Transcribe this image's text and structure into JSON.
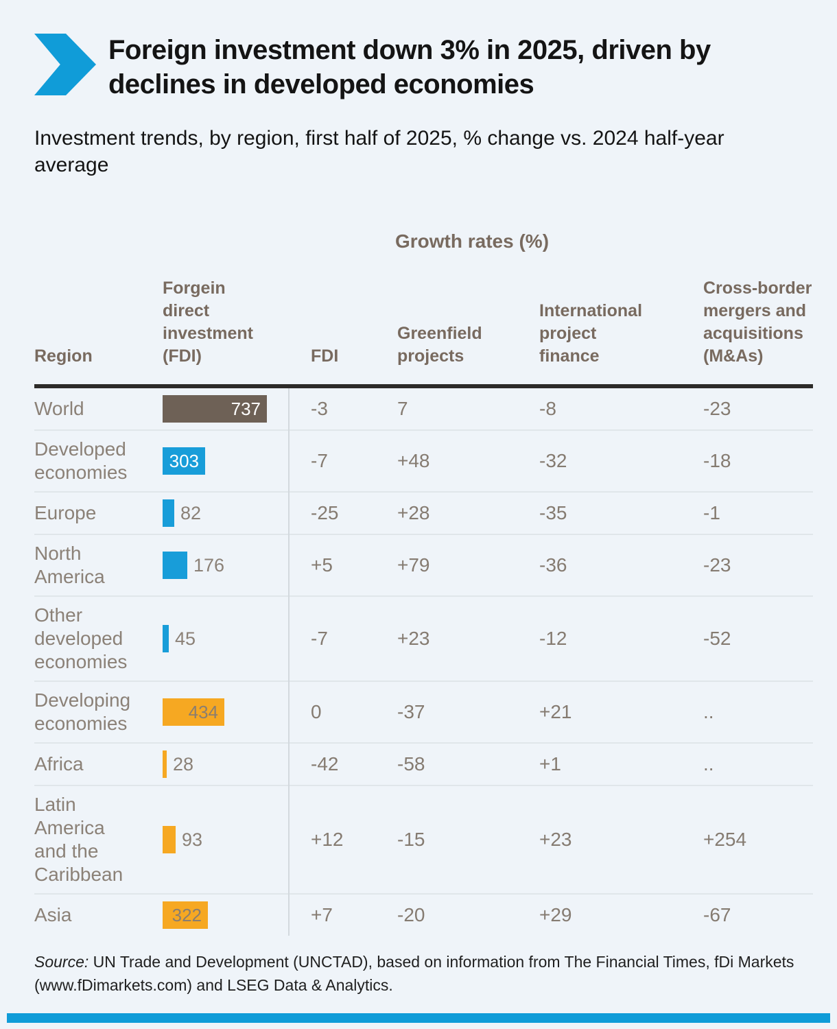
{
  "colors": {
    "accent_blue": "#109cd8",
    "bar_blue": "#189dd9",
    "bar_orange": "#f6a822",
    "bar_brown": "#6e6156",
    "bar_label_light": "#ffffff",
    "bar_label_dark": "#8a7e70",
    "header_text": "#786a5f",
    "body_text": "#8b8177"
  },
  "header": {
    "title": "Foreign investment down 3% in 2025, driven by\ndeclines in developed economies",
    "subtitle": "Investment trends, by region, first half of 2025, % change vs. 2024 half-year\naverage"
  },
  "chart_data": {
    "type": "bar",
    "title": "Foreign investment down 3% in 2025, driven by declines in developed economies",
    "subtitle": "Investment trends, by region, first half of 2025, % change vs. 2024 half-year average",
    "growth_header": "Growth rates (%)",
    "columns": [
      "Region",
      "Forgein\ndirect\ninvestment\n(FDI)",
      "FDI",
      "Greenfield\nprojects",
      "International\nproject\nfinance",
      "Cross-border\nmergers and\nacquisitions\n(M&As)"
    ],
    "fdi_axis_max": 737,
    "rows": [
      {
        "region": "World",
        "fdi_value": 737,
        "bar_color": "brown",
        "label_position": "inside-light",
        "growth": {
          "fdi": "-3",
          "greenfield": "7",
          "ipf": "-8",
          "ma": "-23"
        }
      },
      {
        "region": "Developed\neconomies",
        "fdi_value": 303,
        "bar_color": "blue",
        "label_position": "inside-light",
        "growth": {
          "fdi": "-7",
          "greenfield": "+48",
          "ipf": "-32",
          "ma": "-18"
        }
      },
      {
        "region": "Europe",
        "fdi_value": 82,
        "bar_color": "blue",
        "label_position": "outside",
        "growth": {
          "fdi": "-25",
          "greenfield": "+28",
          "ipf": "-35",
          "ma": "-1"
        }
      },
      {
        "region": "North\nAmerica",
        "fdi_value": 176,
        "bar_color": "blue",
        "label_position": "outside",
        "growth": {
          "fdi": "+5",
          "greenfield": "+79",
          "ipf": "-36",
          "ma": "-23"
        }
      },
      {
        "region": "Other\ndeveloped\neconomies",
        "fdi_value": 45,
        "bar_color": "blue",
        "label_position": "outside",
        "growth": {
          "fdi": "-7",
          "greenfield": "+23",
          "ipf": "-12",
          "ma": "-52"
        }
      },
      {
        "region": "Developing\neconomies",
        "fdi_value": 434,
        "bar_color": "orange",
        "label_position": "inside-dark",
        "growth": {
          "fdi": "0",
          "greenfield": "-37",
          "ipf": "+21",
          "ma": ".."
        }
      },
      {
        "region": "Africa",
        "fdi_value": 28,
        "bar_color": "orange",
        "label_position": "outside",
        "growth": {
          "fdi": "-42",
          "greenfield": "-58",
          "ipf": "+1",
          "ma": ".."
        }
      },
      {
        "region": "Latin\nAmerica\nand the\nCaribbean",
        "fdi_value": 93,
        "bar_color": "orange",
        "label_position": "outside",
        "growth": {
          "fdi": "+12",
          "greenfield": "-15",
          "ipf": "+23",
          "ma": "+254"
        }
      },
      {
        "region": "Asia",
        "fdi_value": 322,
        "bar_color": "orange",
        "label_position": "inside-dark",
        "growth": {
          "fdi": "+7",
          "greenfield": "-20",
          "ipf": "+29",
          "ma": "-67"
        }
      }
    ]
  },
  "source": {
    "label": "Source:",
    "text": "UN Trade and Development (UNCTAD), based on information from The Financial Times, fDi Markets\n(www.fDimarkets.com) and LSEG Data & Analytics."
  }
}
